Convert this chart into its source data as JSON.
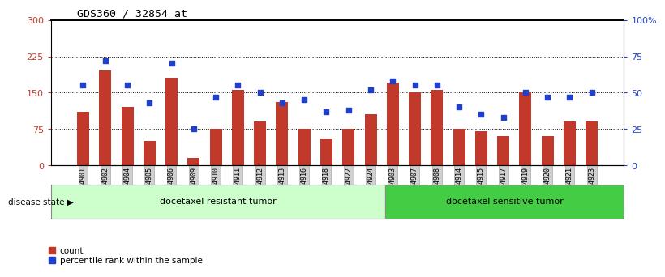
{
  "title": "GDS360 / 32854_at",
  "categories": [
    "GSM4901",
    "GSM4902",
    "GSM4904",
    "GSM4905",
    "GSM4906",
    "GSM4909",
    "GSM4910",
    "GSM4911",
    "GSM4912",
    "GSM4913",
    "GSM4916",
    "GSM4918",
    "GSM4922",
    "GSM4924",
    "GSM4903",
    "GSM4907",
    "GSM4908",
    "GSM4914",
    "GSM4915",
    "GSM4917",
    "GSM4919",
    "GSM4920",
    "GSM4921",
    "GSM4923"
  ],
  "counts": [
    110,
    195,
    120,
    50,
    180,
    15,
    75,
    155,
    90,
    130,
    75,
    55,
    75,
    105,
    170,
    150,
    155,
    75,
    70,
    60,
    150,
    60,
    90,
    90
  ],
  "percentiles": [
    55,
    72,
    55,
    43,
    70,
    25,
    47,
    55,
    50,
    43,
    45,
    37,
    38,
    52,
    58,
    55,
    55,
    40,
    35,
    33,
    50,
    47,
    47,
    50
  ],
  "group1_label": "docetaxel resistant tumor",
  "group2_label": "docetaxel sensitive tumor",
  "group1_count": 14,
  "group2_count": 10,
  "bar_color": "#c0392b",
  "dot_color": "#2040cc",
  "ylim_left": [
    0,
    300
  ],
  "ylim_right": [
    0,
    100
  ],
  "yticks_left": [
    0,
    75,
    150,
    225,
    300
  ],
  "ytick_labels_left": [
    "0",
    "75",
    "150",
    "225",
    "300"
  ],
  "ytick_labels_right": [
    "0",
    "25",
    "50",
    "75",
    "100%"
  ],
  "yticks_right": [
    0,
    25,
    50,
    75,
    100
  ],
  "legend_count_label": "count",
  "legend_pct_label": "percentile rank within the sample",
  "group1_color": "#ccffcc",
  "group2_color": "#44cc44",
  "disease_state_label": "disease state"
}
